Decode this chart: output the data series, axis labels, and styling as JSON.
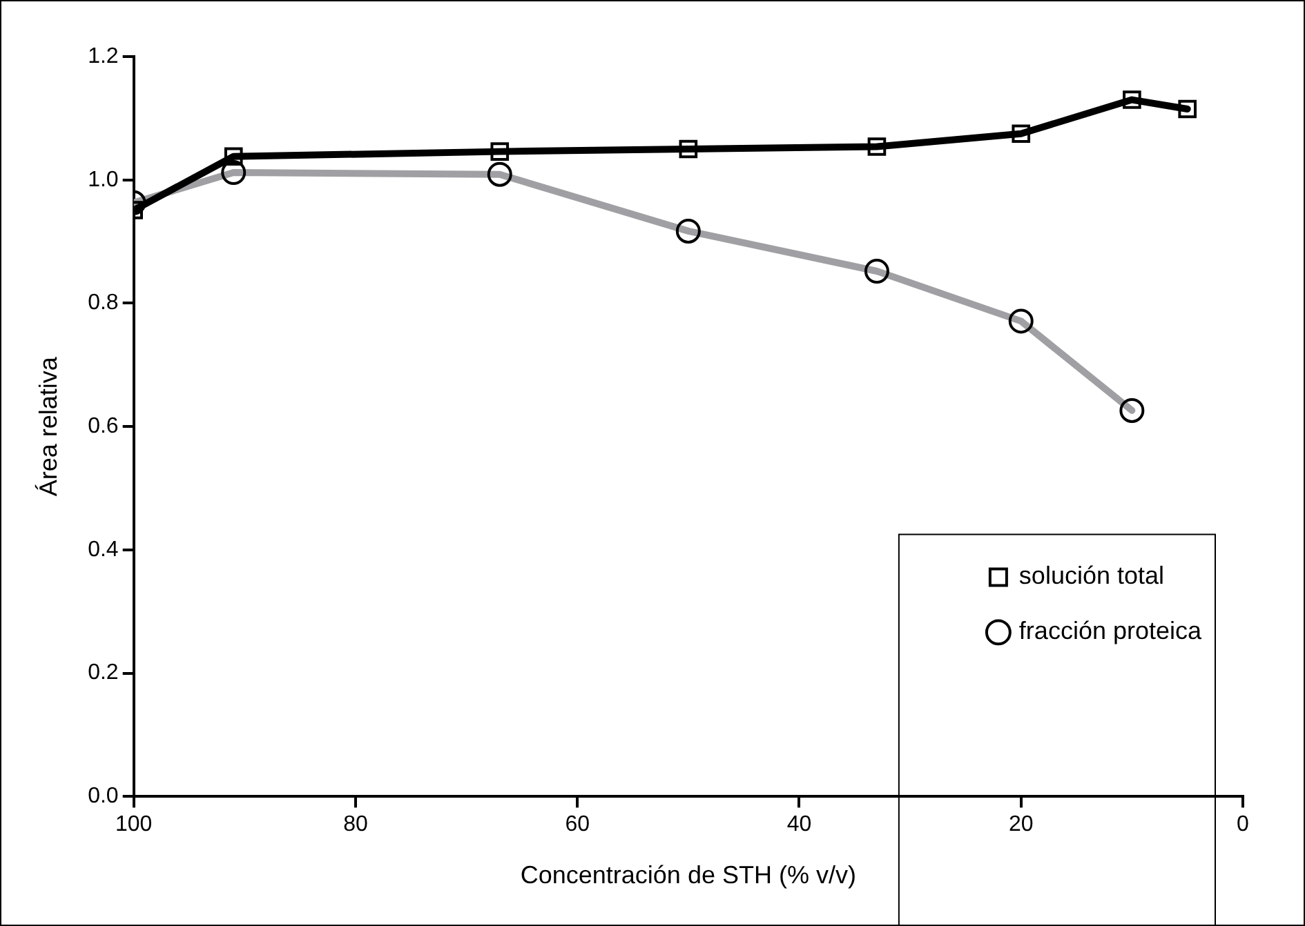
{
  "chart_data": {
    "type": "line",
    "xlabel": "Concentración de STH (% v/v)",
    "ylabel": "Área relativa",
    "xlim": [
      100,
      0
    ],
    "xticks": [
      100,
      80,
      60,
      40,
      20,
      0
    ],
    "ylim": [
      0,
      1.2
    ],
    "yticks": [
      {
        "value": 0,
        "label": "0.0"
      },
      0.2,
      0.4,
      0.6,
      0.8,
      {
        "value": 1,
        "label": "1.0"
      },
      1.2
    ],
    "grid": false,
    "legend": "bottom right",
    "line_style": "solid",
    "series": [
      {
        "name": "solución total",
        "color": "#000000",
        "marker": "square",
        "x": [
          100,
          91,
          67,
          50,
          33,
          20,
          10,
          5
        ],
        "values": [
          0.951,
          1.038,
          1.046,
          1.05,
          1.054,
          1.075,
          1.13,
          1.115
        ]
      },
      {
        "name": "fracción proteica",
        "color": "#a0a0a4",
        "marker": "circle",
        "x": [
          100,
          91,
          67,
          50,
          33,
          20,
          10
        ],
        "values": [
          0.963,
          1.012,
          1.009,
          0.917,
          0.852,
          0.771,
          0.626
        ]
      }
    ]
  }
}
